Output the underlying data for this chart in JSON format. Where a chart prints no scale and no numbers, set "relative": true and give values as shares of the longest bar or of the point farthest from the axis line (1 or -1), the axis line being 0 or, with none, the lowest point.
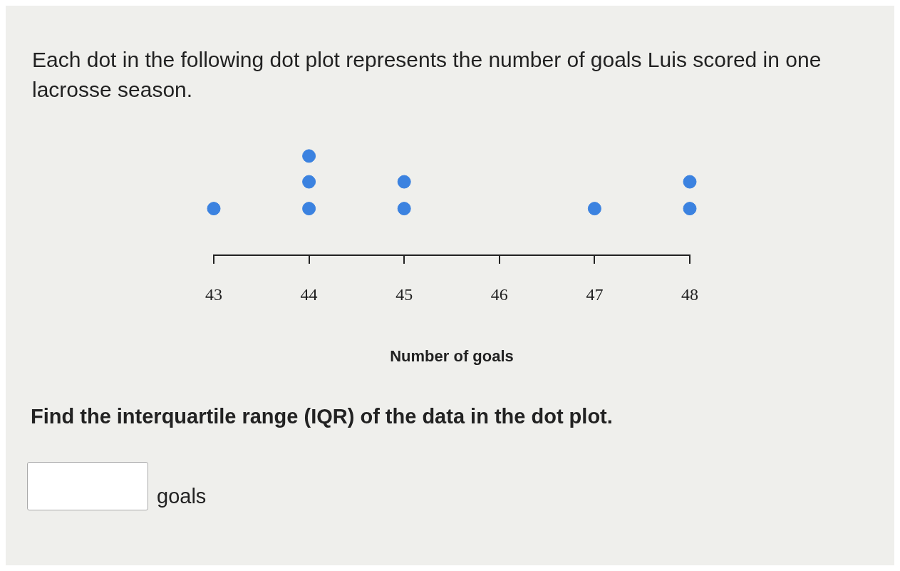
{
  "chart_data": {
    "type": "scatter",
    "title": "Each dot in the following dot plot represents the number of goals Luis scored in one lacrosse season.",
    "xlabel": "Number of goals",
    "x": [
      43,
      44,
      44,
      44,
      45,
      45,
      47,
      48,
      48
    ],
    "values": [
      0.47,
      0.47,
      0.74,
      1,
      0.47,
      0.74,
      0.47,
      0.47,
      0.74
    ],
    "relative": true,
    "color": "#3b82e0",
    "xlim": [
      43,
      48
    ],
    "xticks": [
      43,
      44,
      45,
      46,
      47,
      48
    ],
    "tick_labels": "x",
    "grid": false,
    "legend": false,
    "marker": "circle",
    "annotations": [
      "Find the interquartile range (IQR) of the data in the dot plot.",
      "goals"
    ]
  }
}
